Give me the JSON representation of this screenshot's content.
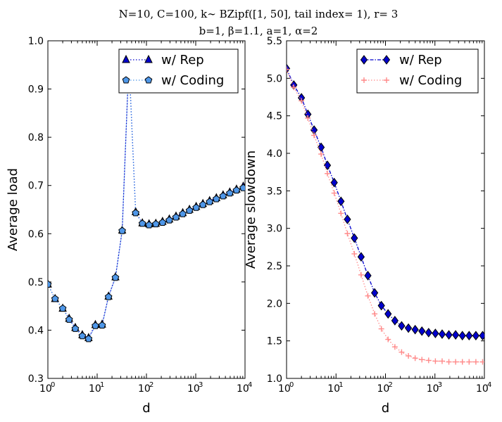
{
  "figure": {
    "title_line1": "N=10, C=100, k∼ BZipf([1, 50], tail index= 1), r= 3",
    "title_line2": "b=1, β=1.1, a=1, α=2"
  },
  "chart_data": [
    {
      "type": "line",
      "xscale": "log",
      "xlabel": "d",
      "ylabel": "Average load",
      "xlim": [
        1,
        10000
      ],
      "ylim": [
        0.3,
        1.0
      ],
      "yticks": [
        0.3,
        0.4,
        0.5,
        0.6,
        0.7,
        0.8,
        0.9,
        1.0
      ],
      "ytick_labels": [
        "0.3",
        "0.4",
        "0.5",
        "0.6",
        "0.7",
        "0.8",
        "0.9",
        "1.0"
      ],
      "xtick_labels": [
        {
          "base": "10",
          "exp": "0"
        },
        {
          "base": "10",
          "exp": "1"
        },
        {
          "base": "10",
          "exp": "2"
        },
        {
          "base": "10",
          "exp": "3"
        },
        {
          "base": "10",
          "exp": "4"
        }
      ],
      "legend_position": "top-right",
      "x": [
        1,
        1.4,
        2,
        2.7,
        3.6,
        5,
        6.7,
        9.2,
        12.6,
        17,
        23.5,
        32.2,
        44.1,
        60.4,
        82.6,
        113,
        155,
        212,
        291,
        398,
        545,
        746,
        1021,
        1398,
        1914,
        2620,
        3587,
        4910,
        6722,
        9202
      ],
      "series": [
        {
          "name": "w/ Rep",
          "marker": "triangle",
          "color": "#0000cc",
          "line_style": "dotted",
          "values": [
            0.495,
            0.465,
            0.445,
            0.424,
            0.405,
            0.39,
            0.384,
            0.411,
            0.412,
            0.47,
            0.51,
            0.607,
            0.96,
            0.645,
            0.622,
            0.62,
            0.621,
            0.625,
            0.63,
            0.636,
            0.643,
            0.65,
            0.656,
            0.662,
            0.668,
            0.674,
            0.68,
            0.686,
            0.692,
            0.698
          ]
        },
        {
          "name": "w/ Coding",
          "marker": "pentagon",
          "color": "#4f97e8",
          "line_style": "dotted",
          "values": [
            0.495,
            0.465,
            0.445,
            0.422,
            0.403,
            0.388,
            0.382,
            0.409,
            0.41,
            0.469,
            0.509,
            0.606,
            0.958,
            0.643,
            0.621,
            0.618,
            0.62,
            0.623,
            0.628,
            0.634,
            0.641,
            0.648,
            0.654,
            0.66,
            0.666,
            0.672,
            0.678,
            0.684,
            0.69,
            0.695
          ]
        }
      ]
    },
    {
      "type": "line",
      "xscale": "log",
      "xlabel": "d",
      "ylabel": "Average slowdown",
      "xlim": [
        1,
        10000
      ],
      "ylim": [
        1.0,
        5.5
      ],
      "yticks": [
        1.0,
        1.5,
        2.0,
        2.5,
        3.0,
        3.5,
        4.0,
        4.5,
        5.0,
        5.5
      ],
      "ytick_labels": [
        "1.0",
        "1.5",
        "2.0",
        "2.5",
        "3.0",
        "3.5",
        "4.0",
        "4.5",
        "5.0",
        "5.5"
      ],
      "xtick_labels": [
        {
          "base": "10",
          "exp": "0"
        },
        {
          "base": "10",
          "exp": "1"
        },
        {
          "base": "10",
          "exp": "2"
        },
        {
          "base": "10",
          "exp": "3"
        },
        {
          "base": "10",
          "exp": "4"
        }
      ],
      "legend_position": "top-right",
      "x": [
        1,
        1.4,
        2,
        2.7,
        3.6,
        5,
        6.7,
        9.2,
        12.6,
        17,
        23.5,
        32.2,
        44.1,
        60.4,
        82.6,
        113,
        155,
        212,
        291,
        398,
        545,
        746,
        1021,
        1398,
        1914,
        2620,
        3587,
        4910,
        6722,
        9202
      ],
      "series": [
        {
          "name": "w/ Rep",
          "marker": "diamond",
          "color": "#0000cc",
          "line_style": "dashdot",
          "values": [
            5.13,
            4.91,
            4.74,
            4.52,
            4.31,
            4.08,
            3.84,
            3.61,
            3.36,
            3.12,
            2.87,
            2.62,
            2.37,
            2.14,
            1.97,
            1.86,
            1.77,
            1.7,
            1.67,
            1.65,
            1.63,
            1.61,
            1.6,
            1.59,
            1.58,
            1.58,
            1.57,
            1.57,
            1.57,
            1.57
          ]
        },
        {
          "name": "w/ Coding",
          "marker": "plus",
          "color": "#ff8a8a",
          "line_style": "dotted",
          "values": [
            5.12,
            4.88,
            4.7,
            4.47,
            4.24,
            3.99,
            3.73,
            3.47,
            3.2,
            2.93,
            2.66,
            2.38,
            2.1,
            1.86,
            1.66,
            1.52,
            1.42,
            1.35,
            1.3,
            1.27,
            1.25,
            1.24,
            1.23,
            1.23,
            1.22,
            1.22,
            1.22,
            1.22,
            1.22,
            1.22
          ]
        }
      ]
    }
  ]
}
